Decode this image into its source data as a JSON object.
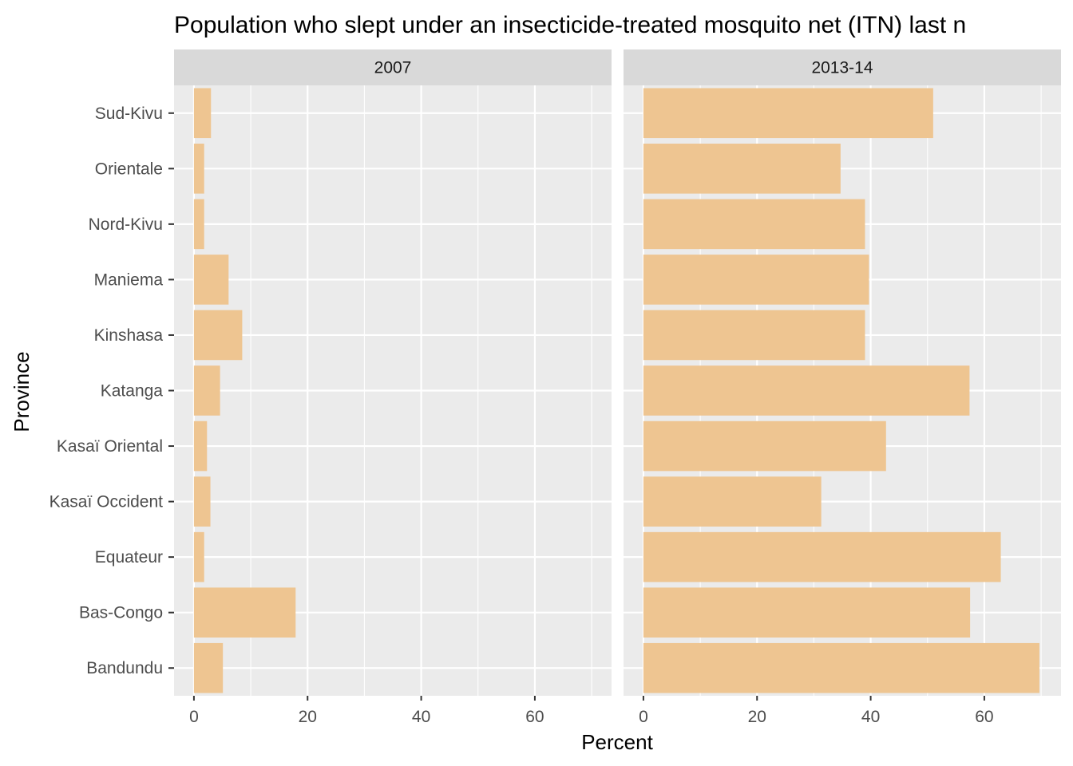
{
  "chart_data": {
    "type": "bar",
    "orientation": "horizontal",
    "title": "Population who slept under an insecticide-treated mosquito net (ITN) last n",
    "xlabel": "Percent",
    "ylabel": "Province",
    "xlim": [
      -3.5,
      73.5
    ],
    "x_ticks": [
      "0",
      "20",
      "40",
      "60"
    ],
    "grid": true,
    "bar_color": "#EEC591",
    "panel_bg": "#EBEBEB",
    "strip_bg": "#D9D9D9",
    "categories": [
      "Sud-Kivu",
      "Orientale",
      "Nord-Kivu",
      "Maniema",
      "Kinshasa",
      "Katanga",
      "Kasaï Oriental",
      "Kasaï Occident",
      "Equateur",
      "Bas-Congo",
      "Bandundu"
    ],
    "facets": [
      {
        "name": "2007",
        "values": [
          3.0,
          1.8,
          1.8,
          6.1,
          8.5,
          4.6,
          2.3,
          2.9,
          1.8,
          17.9,
          5.1
        ]
      },
      {
        "name": "2013-14",
        "values": [
          51.0,
          34.7,
          39.0,
          39.7,
          39.0,
          57.4,
          42.7,
          31.3,
          62.9,
          57.5,
          69.7
        ]
      }
    ]
  }
}
